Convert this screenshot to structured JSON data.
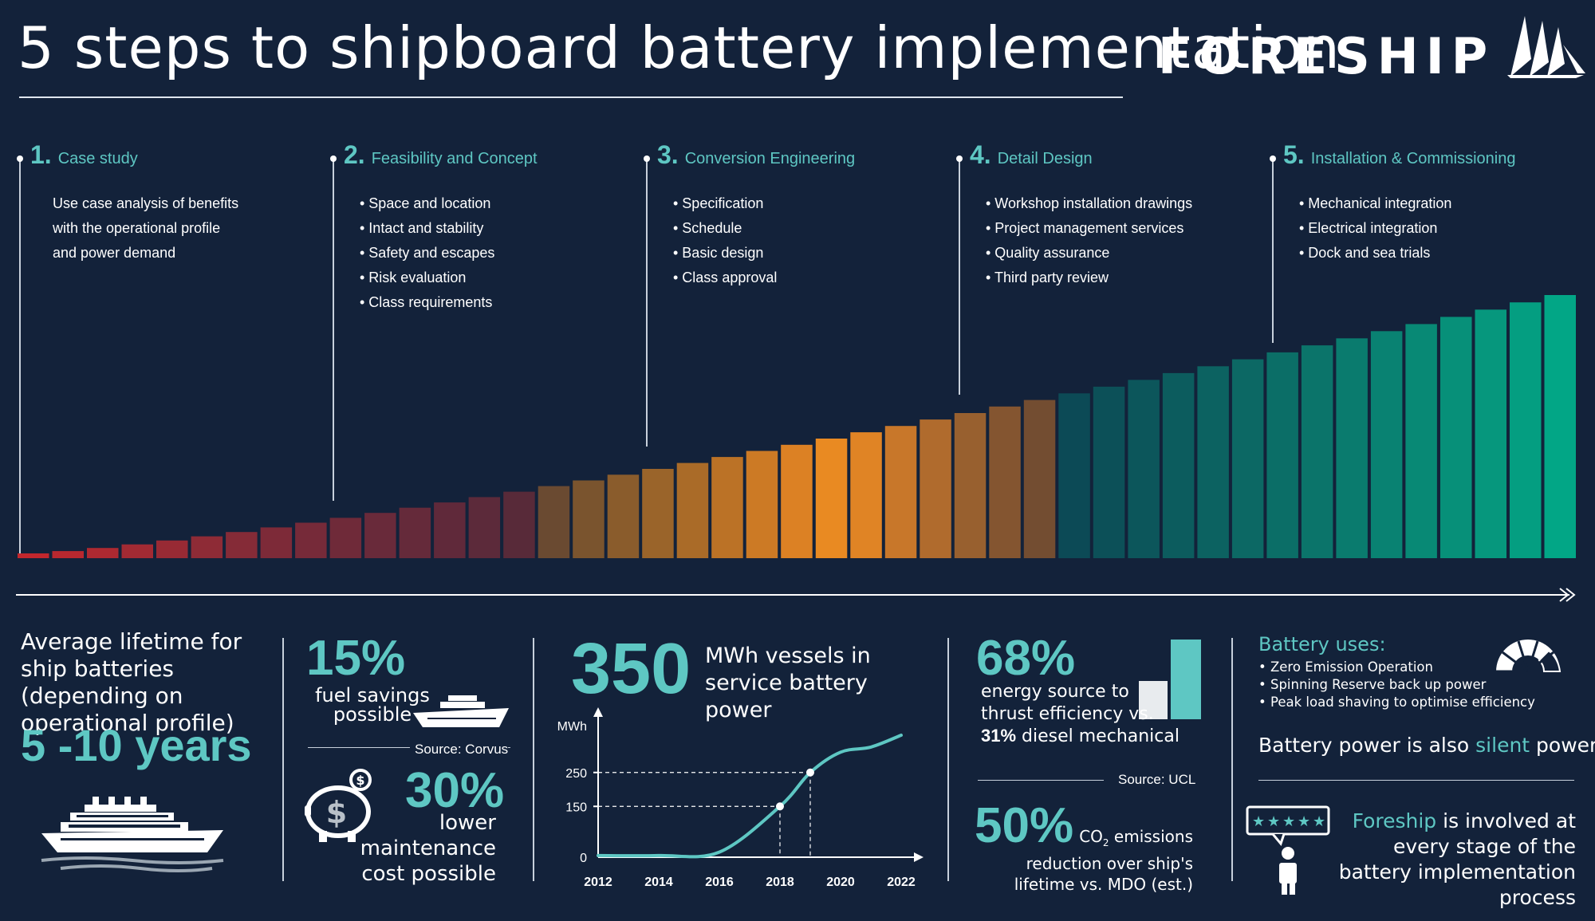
{
  "title": "5 steps to shipboard battery implementation",
  "brand": {
    "name": "FORESHIP"
  },
  "steps": [
    {
      "num": "1.",
      "title": "Case study",
      "lines": [
        "Use case analysis of benefits",
        "with the operational profile",
        "and power demand"
      ]
    },
    {
      "num": "2.",
      "title": "Feasibility and Concept",
      "lines": [
        "• Space and location",
        "• Intact and stability",
        "• Safety and escapes",
        "• Risk evaluation",
        "• Class requirements"
      ]
    },
    {
      "num": "3.",
      "title": "Conversion Engineering",
      "lines": [
        "• Specification",
        "• Schedule",
        "• Basic design",
        "• Class approval"
      ]
    },
    {
      "num": "4.",
      "title": "Detail Design",
      "lines": [
        "• Workshop installation drawings",
        "• Project management services",
        "• Quality assurance",
        "• Third party review"
      ]
    },
    {
      "num": "5.",
      "title": "Installation & Commissioning",
      "lines": [
        "• Mechanical integration",
        "• Electrical integration",
        "• Dock and sea trials"
      ]
    }
  ],
  "progress_bars": {
    "count": 45,
    "colors": [
      "#c2272d",
      "#b8282f",
      "#ad2931",
      "#a22a33",
      "#982a34",
      "#8e2b36",
      "#852b37",
      "#7d2a38",
      "#762a39",
      "#6f2a39",
      "#692a3a",
      "#652a3a",
      "#60293a",
      "#5c2a3a",
      "#582a39",
      "#6a4a31",
      "#7a542e",
      "#8a5c2c",
      "#9a642a",
      "#aa6b28",
      "#bb7226",
      "#cc7a25",
      "#dc8124",
      "#e98a22",
      "#e08425",
      "#c8772a",
      "#b06b2d",
      "#98602f",
      "#845530",
      "#734d31",
      "#0c4a56",
      "#0c5058",
      "#0c565b",
      "#0c5c5e",
      "#0c6261",
      "#0c6864",
      "#0b6e67",
      "#0b746a",
      "#0a7b6e",
      "#098272",
      "#088975",
      "#079079",
      "#06977d",
      "#049e81",
      "#02a686"
    ]
  },
  "stats": {
    "lifetime": {
      "text": "Average lifetime for ship batteries (depending on operational profile)",
      "value": "5 -10 years"
    },
    "fuel": {
      "value": "15%",
      "label": "fuel savings possible",
      "source": "Source: Corvus"
    },
    "maintenance": {
      "value": "30%",
      "label": "lower maintenance cost possible"
    },
    "mwh": {
      "value": "350",
      "label": "MWh vessels in service battery power"
    },
    "efficiency": {
      "value": "68%",
      "label_main": "energy source to thrust efficiency vs.",
      "label_bold": "31%",
      "label_tail": " diesel mechanical",
      "source": "Source: UCL"
    },
    "co2": {
      "value": "50%",
      "label_pre": "CO",
      "label_sub": "2",
      "label_post": " emissions reduction over ship's lifetime vs. MDO (est.)"
    },
    "uses": {
      "title": "Battery uses:",
      "items": [
        "• Zero Emission Operation",
        "• Spinning Reserve back up power",
        "• Peak load shaving to optimise efficiency"
      ]
    },
    "silent": {
      "pre": "Battery power is also ",
      "highlight": "silent",
      "post": " power"
    },
    "involved": {
      "highlight": "Foreship",
      "rest": " is involved at every stage of the battery implementation process"
    }
  },
  "chart_data": {
    "type": "line",
    "ylabel": "MWh",
    "x": [
      2012,
      2014,
      2016,
      2018,
      2019,
      2020,
      2021,
      2022
    ],
    "values": [
      5,
      5,
      15,
      150,
      250,
      310,
      325,
      360
    ],
    "xticks": [
      "2012",
      "2014",
      "2016",
      "2018",
      "2020",
      "2022"
    ],
    "yticks": [
      "0",
      "150",
      "250"
    ],
    "xlim": [
      2012,
      2022
    ],
    "ylim": [
      0,
      400
    ],
    "markers": [
      {
        "x": 2018,
        "y": 150
      },
      {
        "x": 2019,
        "y": 250
      }
    ],
    "line_color": "#5ec7c3"
  },
  "legend_colors": {
    "accent": "#5ec7c3",
    "diesel": "#e8ebee"
  }
}
